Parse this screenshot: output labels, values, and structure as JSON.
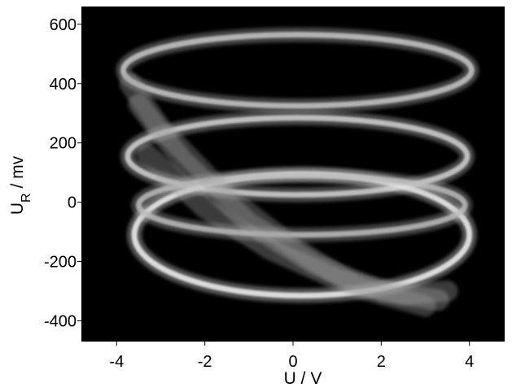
{
  "chart_data": {
    "type": "line",
    "title": "",
    "xlabel": "U / V",
    "ylabel_main": "U",
    "ylabel_sub": "R",
    "ylabel_unit": " / mv",
    "xlim": [
      -4.8,
      4.8
    ],
    "ylim": [
      -470,
      660
    ],
    "x_ticks": [
      -4,
      -2,
      0,
      2,
      4
    ],
    "y_ticks": [
      -400,
      -200,
      0,
      200,
      400,
      600
    ],
    "grid": false,
    "background_color": "#000000",
    "trace_color": "#c8c8c8",
    "bright_trace_color": "#f2f2f2",
    "series": [
      {
        "type": "ellipse",
        "cx": 0.1,
        "cy": 445,
        "rx": 3.95,
        "ry": 120,
        "brightness": 0.68
      },
      {
        "type": "ellipse",
        "cx": 0.1,
        "cy": 155,
        "rx": 3.85,
        "ry": 130,
        "brightness": 0.75
      },
      {
        "type": "ellipse",
        "cx": 0.2,
        "cy": -110,
        "rx": 3.8,
        "ry": 205,
        "brightness": 0.95
      },
      {
        "type": "ellipse",
        "cx": 0.2,
        "cy": -10,
        "rx": 3.7,
        "ry": 100,
        "brightness": 0.62
      },
      {
        "type": "sweep",
        "x": [
          -3.5,
          -2.5,
          -1.0,
          0.5,
          2.0,
          3.3
        ],
        "y": [
          330,
          140,
          -70,
          -210,
          -300,
          -330
        ],
        "brightness": 0.55
      },
      {
        "type": "sweep",
        "x": [
          -3.3,
          -2.0,
          -0.5,
          1.0,
          2.5,
          3.5
        ],
        "y": [
          160,
          -20,
          -160,
          -260,
          -310,
          -300
        ],
        "brightness": 0.5
      },
      {
        "type": "sweep",
        "x": [
          -3.7,
          -3.0,
          -1.5,
          0.0,
          1.5,
          3.0
        ],
        "y": [
          400,
          250,
          20,
          -150,
          -290,
          -350
        ],
        "brightness": 0.45
      }
    ]
  }
}
